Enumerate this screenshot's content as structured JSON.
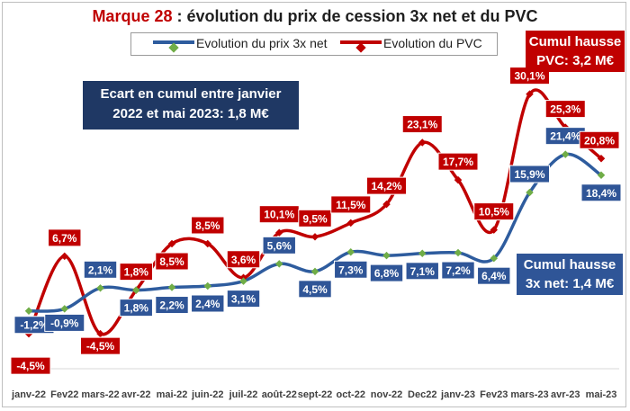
{
  "title_brand": "Marque 28",
  "title_rest": " : évolution du prix de cession 3x net et du PVC",
  "notes": {
    "ecart": [
      "Ecart en cumul entre janvier",
      "2022 et mai 2023: 1,8 M€"
    ],
    "cumul_pvc": [
      "Cumul hausse",
      "PVC: 3,2 M€"
    ],
    "cumul_3x": [
      "Cumul hausse",
      "3x net: 1,4 M€"
    ]
  },
  "colors": {
    "blue_series": "#2e5c9e",
    "red_series": "#c00000",
    "blue_label": "#2f5597",
    "marker": "#70ad47",
    "ecart_box": "#1f3864"
  },
  "chart_data": {
    "type": "line",
    "categories": [
      "janv-22",
      "Fev22",
      "mars-22",
      "avr-22",
      "mai-22",
      "juin-22",
      "juil-22",
      "août-22",
      "sept-22",
      "oct-22",
      "nov-22",
      "Dec22",
      "janv-23",
      "Fev23",
      "mars-23",
      "avr-23",
      "mai-23"
    ],
    "series": [
      {
        "name": "Evolution du prix 3x net",
        "values": [
          -1.2,
          -0.9,
          2.1,
          1.8,
          2.2,
          2.4,
          3.1,
          5.6,
          4.5,
          7.3,
          6.8,
          7.1,
          7.2,
          6.4,
          15.9,
          21.4,
          18.4
        ],
        "labels": [
          "-1,2%",
          "-0,9%",
          "2,1%",
          "1,8%",
          "2,2%",
          "2,4%",
          "3,1%",
          "5,6%",
          "4,5%",
          "7,3%",
          "6,8%",
          "7,1%",
          "7,2%",
          "6,4%",
          "15,9%",
          "21,4%",
          "18,4%"
        ]
      },
      {
        "name": "Evolution du PVC",
        "values": [
          -4.5,
          6.7,
          -4.5,
          1.8,
          8.5,
          8.5,
          3.6,
          10.1,
          9.5,
          11.5,
          14.2,
          23.1,
          17.7,
          10.5,
          30.1,
          25.3,
          20.8
        ],
        "labels": [
          "-4,5%",
          "6,7%",
          "-4,5%",
          "1,8%",
          "8,5%",
          "8,5%",
          "3,6%",
          "10,1%",
          "9,5%",
          "11,5%",
          "14,2%",
          "23,1%",
          "17,7%",
          "10,5%",
          "30,1%",
          "25,3%",
          "20,8%"
        ]
      }
    ],
    "ylim": [
      -5,
      32
    ],
    "grid": false,
    "legend": "top"
  }
}
